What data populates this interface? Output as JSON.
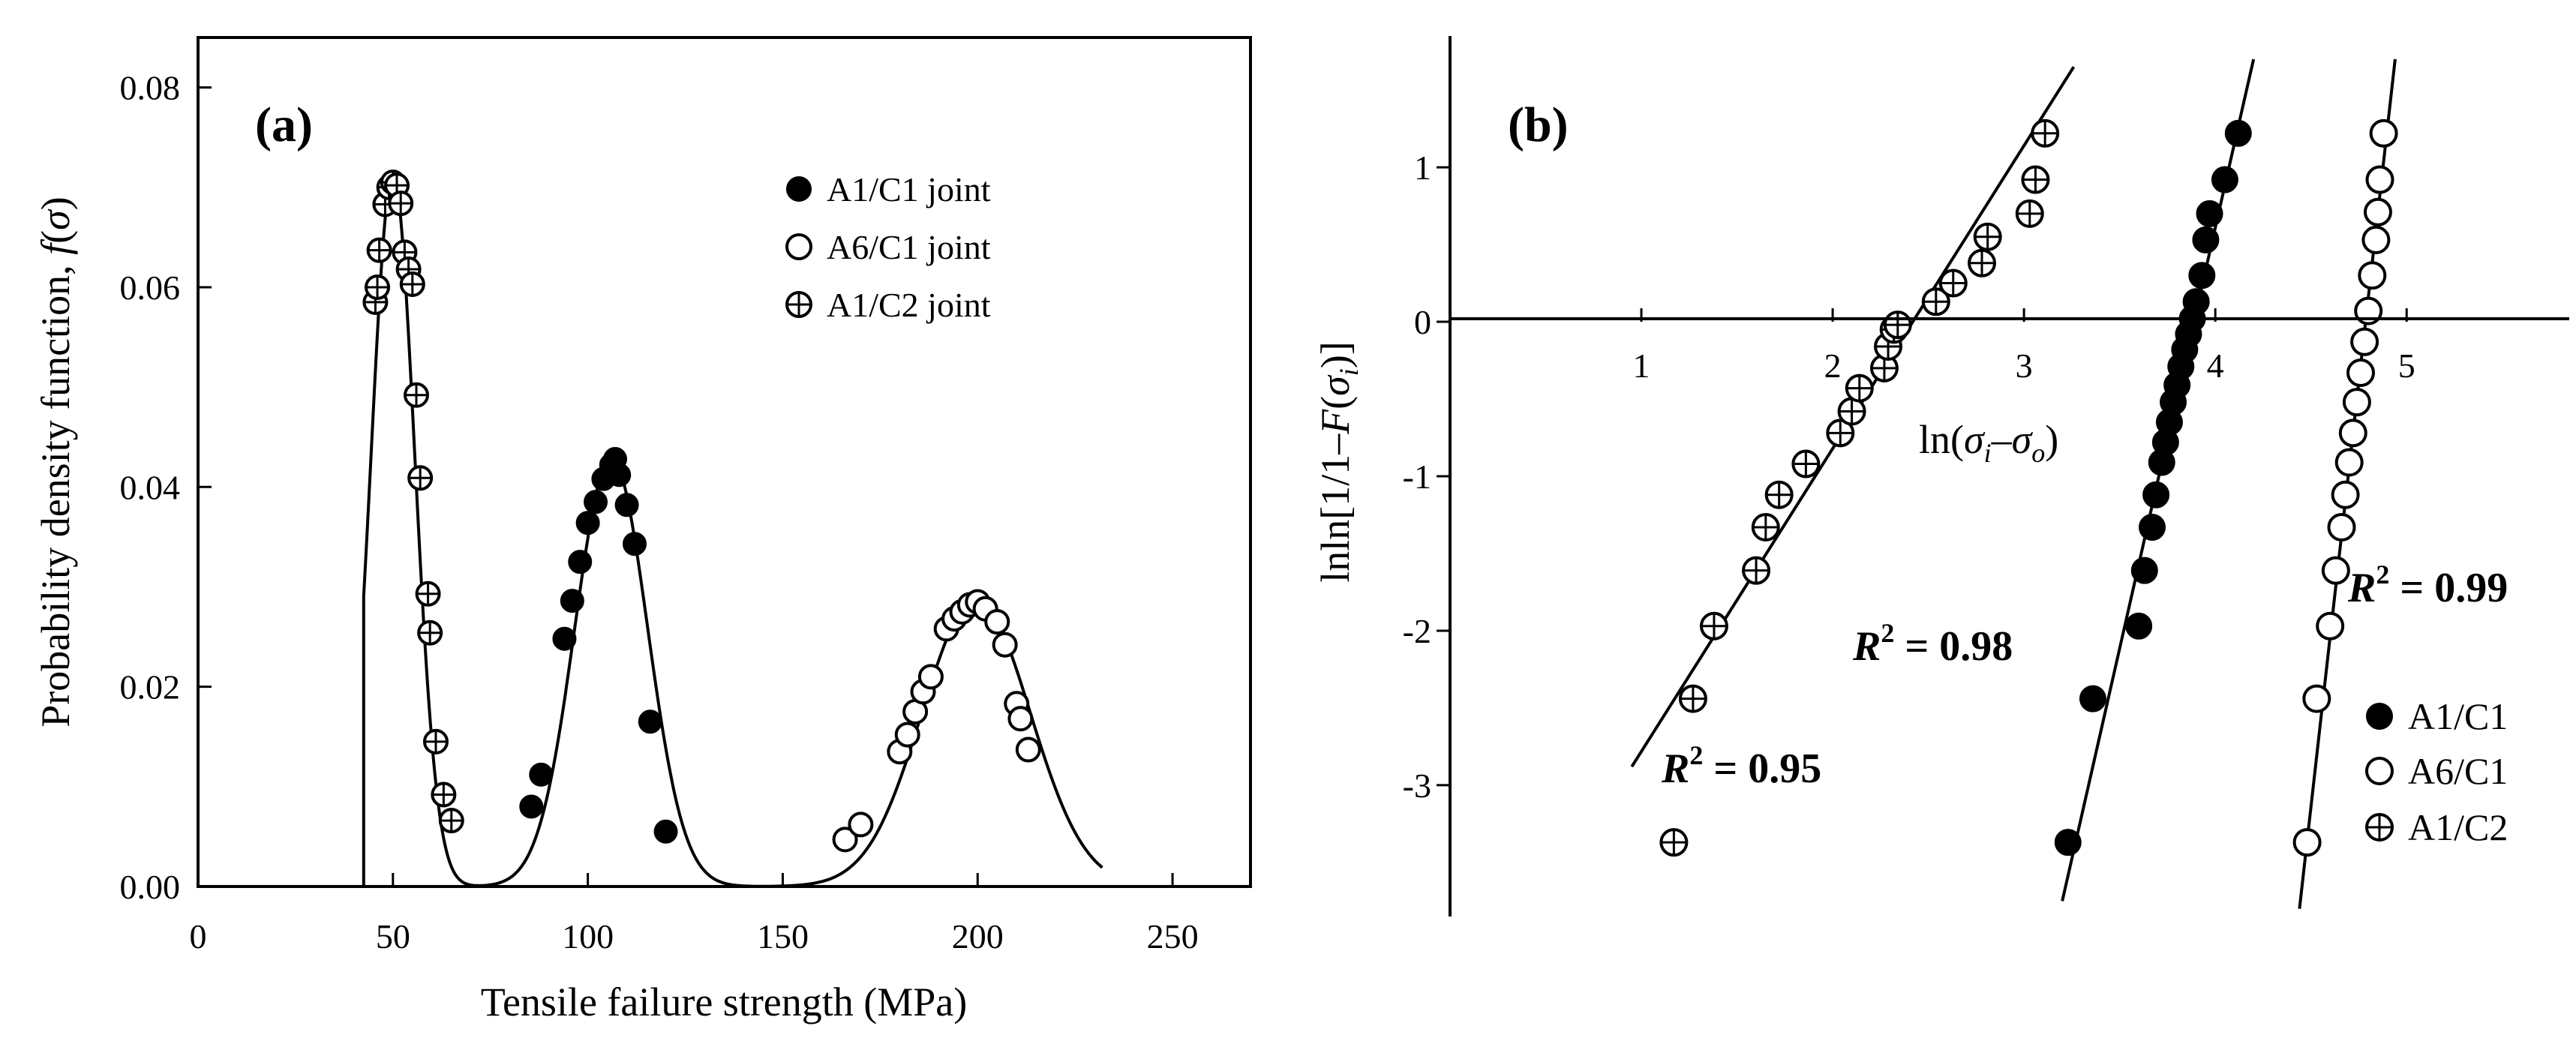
{
  "chart_data": [
    {
      "type": "scatter",
      "panel_label": "(a)",
      "xlabel": "Tensile failure strength (MPa)",
      "ylabel_main": "Probability density function, ",
      "ylabel_f": "f",
      "ylabel_open": "(",
      "ylabel_sigma": "σ",
      "ylabel_close": ")",
      "xlim": [
        0,
        270
      ],
      "ylim": [
        0,
        0.085
      ],
      "xticks": [
        "0",
        "50",
        "100",
        "150",
        "200",
        "250"
      ],
      "xtick_values": [
        0,
        50,
        100,
        150,
        200,
        250
      ],
      "yticks": [
        "0.00",
        "0.02",
        "0.04",
        "0.06",
        "0.08"
      ],
      "ytick_values": [
        0,
        0.02,
        0.04,
        0.06,
        0.08
      ],
      "legend_position": "top-right",
      "series": [
        {
          "name": "A1/C1 joint",
          "marker": "filled-circle",
          "points": [
            [
              85.5,
              0.008
            ],
            [
              88,
              0.0112
            ],
            [
              94,
              0.0248
            ],
            [
              96,
              0.0286
            ],
            [
              98,
              0.0325
            ],
            [
              100,
              0.0364
            ],
            [
              102,
              0.0385
            ],
            [
              104,
              0.0408
            ],
            [
              106,
              0.0422
            ],
            [
              107,
              0.0428
            ],
            [
              108,
              0.0412
            ],
            [
              110,
              0.0382
            ],
            [
              112,
              0.0343
            ],
            [
              116,
              0.0165
            ],
            [
              120,
              0.0055
            ]
          ],
          "fit": {
            "mu": 106,
            "sigma": 9.3
          }
        },
        {
          "name": "A6/C1 joint",
          "marker": "open-circle",
          "points": [
            [
              166,
              0.0047
            ],
            [
              170,
              0.0062
            ],
            [
              180,
              0.0135
            ],
            [
              182,
              0.0152
            ],
            [
              184,
              0.0175
            ],
            [
              186,
              0.0195
            ],
            [
              188,
              0.021
            ],
            [
              192,
              0.0258
            ],
            [
              194,
              0.0268
            ],
            [
              196,
              0.0275
            ],
            [
              198,
              0.0282
            ],
            [
              200,
              0.0285
            ],
            [
              202,
              0.0278
            ],
            [
              205,
              0.0265
            ],
            [
              207,
              0.0242
            ],
            [
              210,
              0.0183
            ],
            [
              211,
              0.0168
            ],
            [
              213,
              0.0137
            ]
          ],
          "fit": {
            "mu": 199.6,
            "sigma": 13.9
          }
        },
        {
          "name": "A1/C2 joint",
          "marker": "circle-plus",
          "points": [
            [
              45.5,
              0.0585
            ],
            [
              46,
              0.06
            ],
            [
              46.5,
              0.0637
            ],
            [
              48,
              0.0683
            ],
            [
              49,
              0.07
            ],
            [
              50,
              0.0705
            ],
            [
              51,
              0.0702
            ],
            [
              52,
              0.0684
            ],
            [
              53,
              0.0635
            ],
            [
              54,
              0.0618
            ],
            [
              55,
              0.0603
            ],
            [
              56,
              0.0492
            ],
            [
              57,
              0.0409
            ],
            [
              59,
              0.0293
            ],
            [
              59.5,
              0.0254
            ],
            [
              61,
              0.0145
            ],
            [
              63,
              0.0092
            ],
            [
              65,
              0.0066
            ]
          ],
          "fit": {
            "mu": 50,
            "sigma": 5.6,
            "start": 42.5
          }
        }
      ]
    },
    {
      "type": "scatter",
      "panel_label": "(b)",
      "xlabel_parts": [
        "ln(",
        "σ",
        "i",
        "–",
        "σ",
        "o",
        ")"
      ],
      "ylabel_parts": [
        "lnln[1/1–",
        "F",
        "(",
        "σ",
        "i",
        ")]"
      ],
      "xlim": [
        0,
        5.85
      ],
      "ylim": [
        -3.85,
        1.85
      ],
      "xticks": [
        "1",
        "2",
        "3",
        "4",
        "5"
      ],
      "xtick_values": [
        1,
        2,
        3,
        4,
        5
      ],
      "yticks": [
        "1",
        "0",
        "-1",
        "-2",
        "-3"
      ],
      "ytick_values": [
        1,
        0,
        -1,
        -2,
        -3
      ],
      "legend_position": "bottom-right",
      "series": [
        {
          "name": "A1/C1",
          "marker": "filled-circle",
          "points": [
            [
              3.23,
              -3.37
            ],
            [
              3.36,
              -2.44
            ],
            [
              3.6,
              -1.97
            ],
            [
              3.63,
              -1.61
            ],
            [
              3.67,
              -1.33
            ],
            [
              3.69,
              -1.12
            ],
            [
              3.72,
              -0.91
            ],
            [
              3.74,
              -0.78
            ],
            [
              3.76,
              -0.65
            ],
            [
              3.78,
              -0.52
            ],
            [
              3.8,
              -0.41
            ],
            [
              3.82,
              -0.29
            ],
            [
              3.84,
              -0.18
            ],
            [
              3.86,
              -0.08
            ],
            [
              3.88,
              0.02
            ],
            [
              3.9,
              0.13
            ],
            [
              3.93,
              0.3
            ],
            [
              3.95,
              0.53
            ],
            [
              3.97,
              0.7
            ],
            [
              4.05,
              0.92
            ],
            [
              4.12,
              1.22
            ]
          ],
          "fit_line": [
            [
              3.2,
              -3.75
            ],
            [
              4.2,
              1.7
            ]
          ],
          "r2_label": "R",
          "r2_exp": "2",
          "r2_value": " = 0.98"
        },
        {
          "name": "A6/C1",
          "marker": "open-circle",
          "points": [
            [
              4.48,
              -3.37
            ],
            [
              4.53,
              -2.44
            ],
            [
              4.6,
              -1.97
            ],
            [
              4.63,
              -1.61
            ],
            [
              4.66,
              -1.33
            ],
            [
              4.68,
              -1.12
            ],
            [
              4.7,
              -0.91
            ],
            [
              4.72,
              -0.72
            ],
            [
              4.74,
              -0.52
            ],
            [
              4.76,
              -0.33
            ],
            [
              4.78,
              -0.13
            ],
            [
              4.8,
              0.07
            ],
            [
              4.82,
              0.3
            ],
            [
              4.84,
              0.53
            ],
            [
              4.85,
              0.71
            ],
            [
              4.86,
              0.92
            ],
            [
              4.88,
              1.22
            ]
          ],
          "fit_line": [
            [
              4.44,
              -3.8
            ],
            [
              4.94,
              1.7
            ]
          ],
          "r2_label": "R",
          "r2_exp": "2",
          "r2_value": " = 0.99"
        },
        {
          "name": "A1/C2",
          "marker": "circle-plus",
          "points": [
            [
              1.17,
              -3.37
            ],
            [
              1.27,
              -2.44
            ],
            [
              1.38,
              -1.97
            ],
            [
              1.6,
              -1.61
            ],
            [
              1.65,
              -1.33
            ],
            [
              1.72,
              -1.12
            ],
            [
              1.86,
              -0.92
            ],
            [
              2.04,
              -0.72
            ],
            [
              2.1,
              -0.58
            ],
            [
              2.14,
              -0.43
            ],
            [
              2.27,
              -0.3
            ],
            [
              2.29,
              -0.16
            ],
            [
              2.32,
              -0.05
            ],
            [
              2.34,
              -0.02
            ],
            [
              2.54,
              0.13
            ],
            [
              2.63,
              0.25
            ],
            [
              2.78,
              0.38
            ],
            [
              2.81,
              0.55
            ],
            [
              3.03,
              0.7
            ],
            [
              3.06,
              0.92
            ],
            [
              3.11,
              1.22
            ]
          ],
          "fit_line": [
            [
              0.95,
              -2.88
            ],
            [
              3.26,
              1.65
            ]
          ],
          "r2_label": "R",
          "r2_exp": "2",
          "r2_value": " = 0.95"
        }
      ]
    }
  ]
}
